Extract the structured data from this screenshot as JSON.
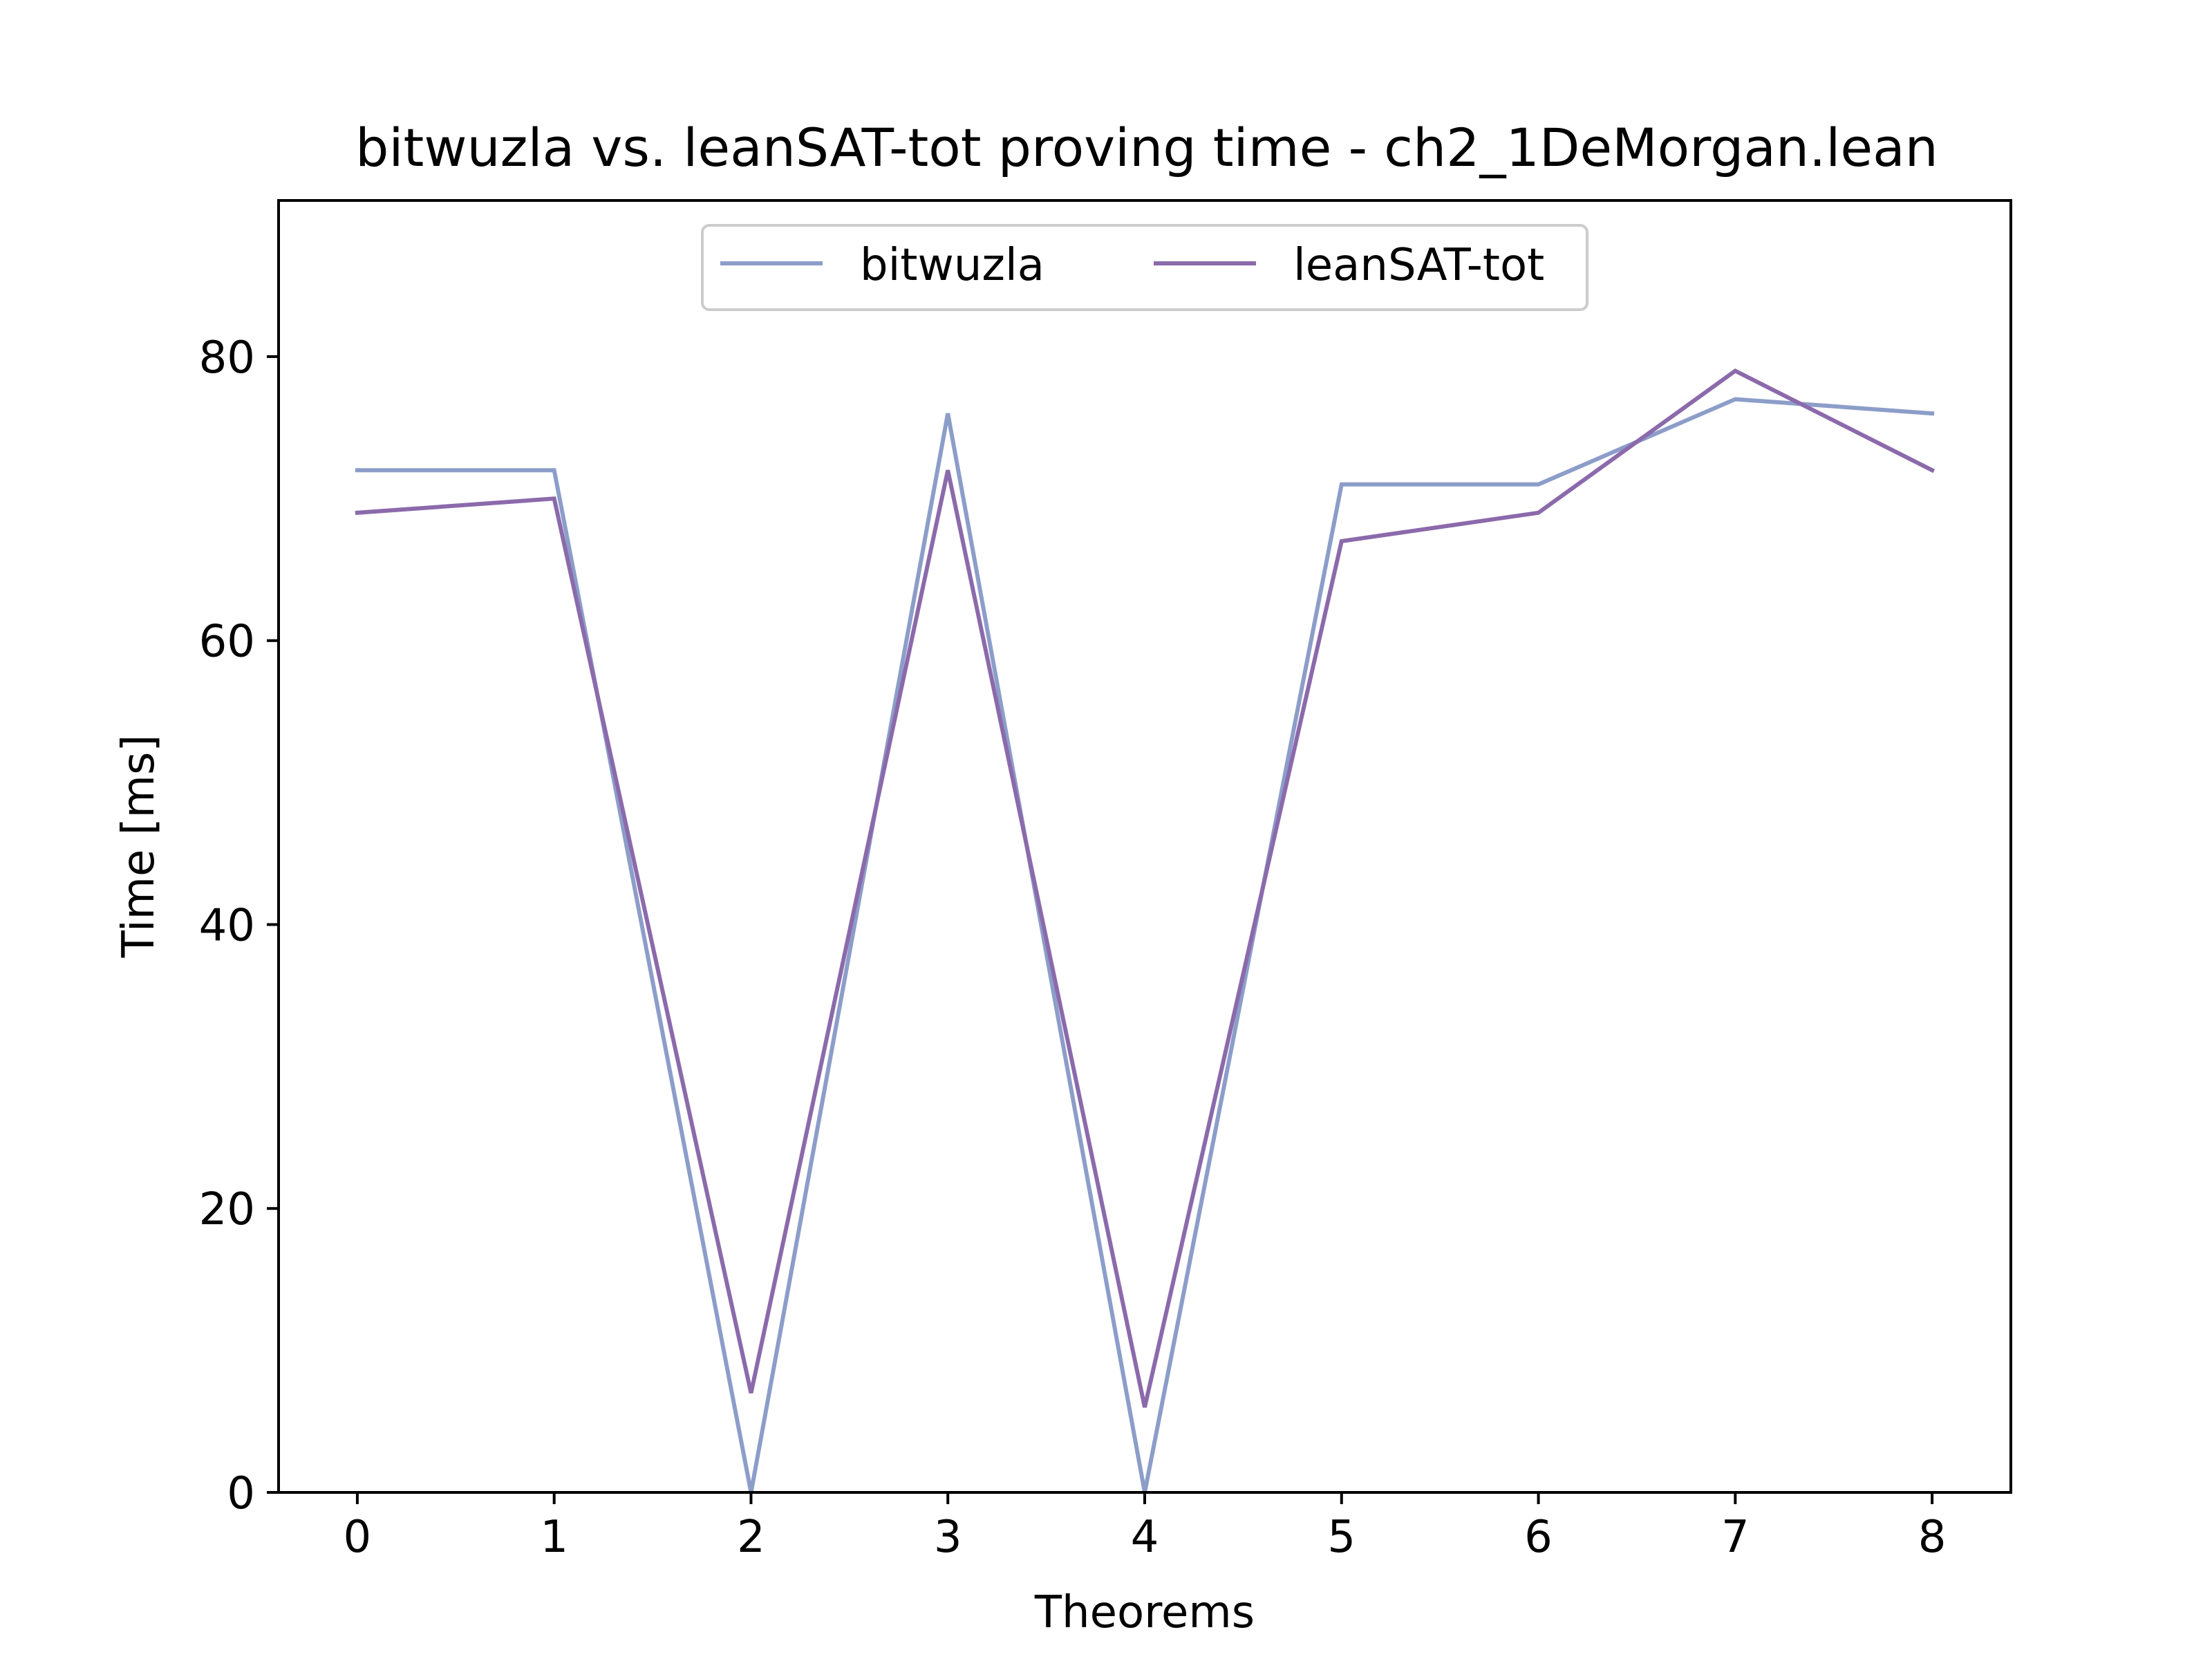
{
  "chart_data": {
    "type": "line",
    "title": "bitwuzla vs. leanSAT-tot proving time - ch2_1DeMorgan.lean",
    "xlabel": "Theorems",
    "ylabel": "Time [ms]",
    "x": [
      0,
      1,
      2,
      3,
      4,
      5,
      6,
      7,
      8
    ],
    "xlim": [
      -0.4,
      8.4
    ],
    "ylim": [
      0,
      91
    ],
    "xticks": [
      0,
      1,
      2,
      3,
      4,
      5,
      6,
      7,
      8
    ],
    "yticks": [
      0,
      20,
      40,
      60,
      80
    ],
    "grid": false,
    "legend_position": "upper center",
    "series": [
      {
        "name": "bitwuzla",
        "color": "#8c9dc9",
        "values": [
          72,
          72,
          0,
          76,
          0,
          71,
          71,
          77,
          76
        ]
      },
      {
        "name": "leanSAT-tot",
        "color": "#8b6aab",
        "values": [
          69,
          70,
          7,
          72,
          6,
          67,
          69,
          79,
          72
        ]
      }
    ]
  }
}
